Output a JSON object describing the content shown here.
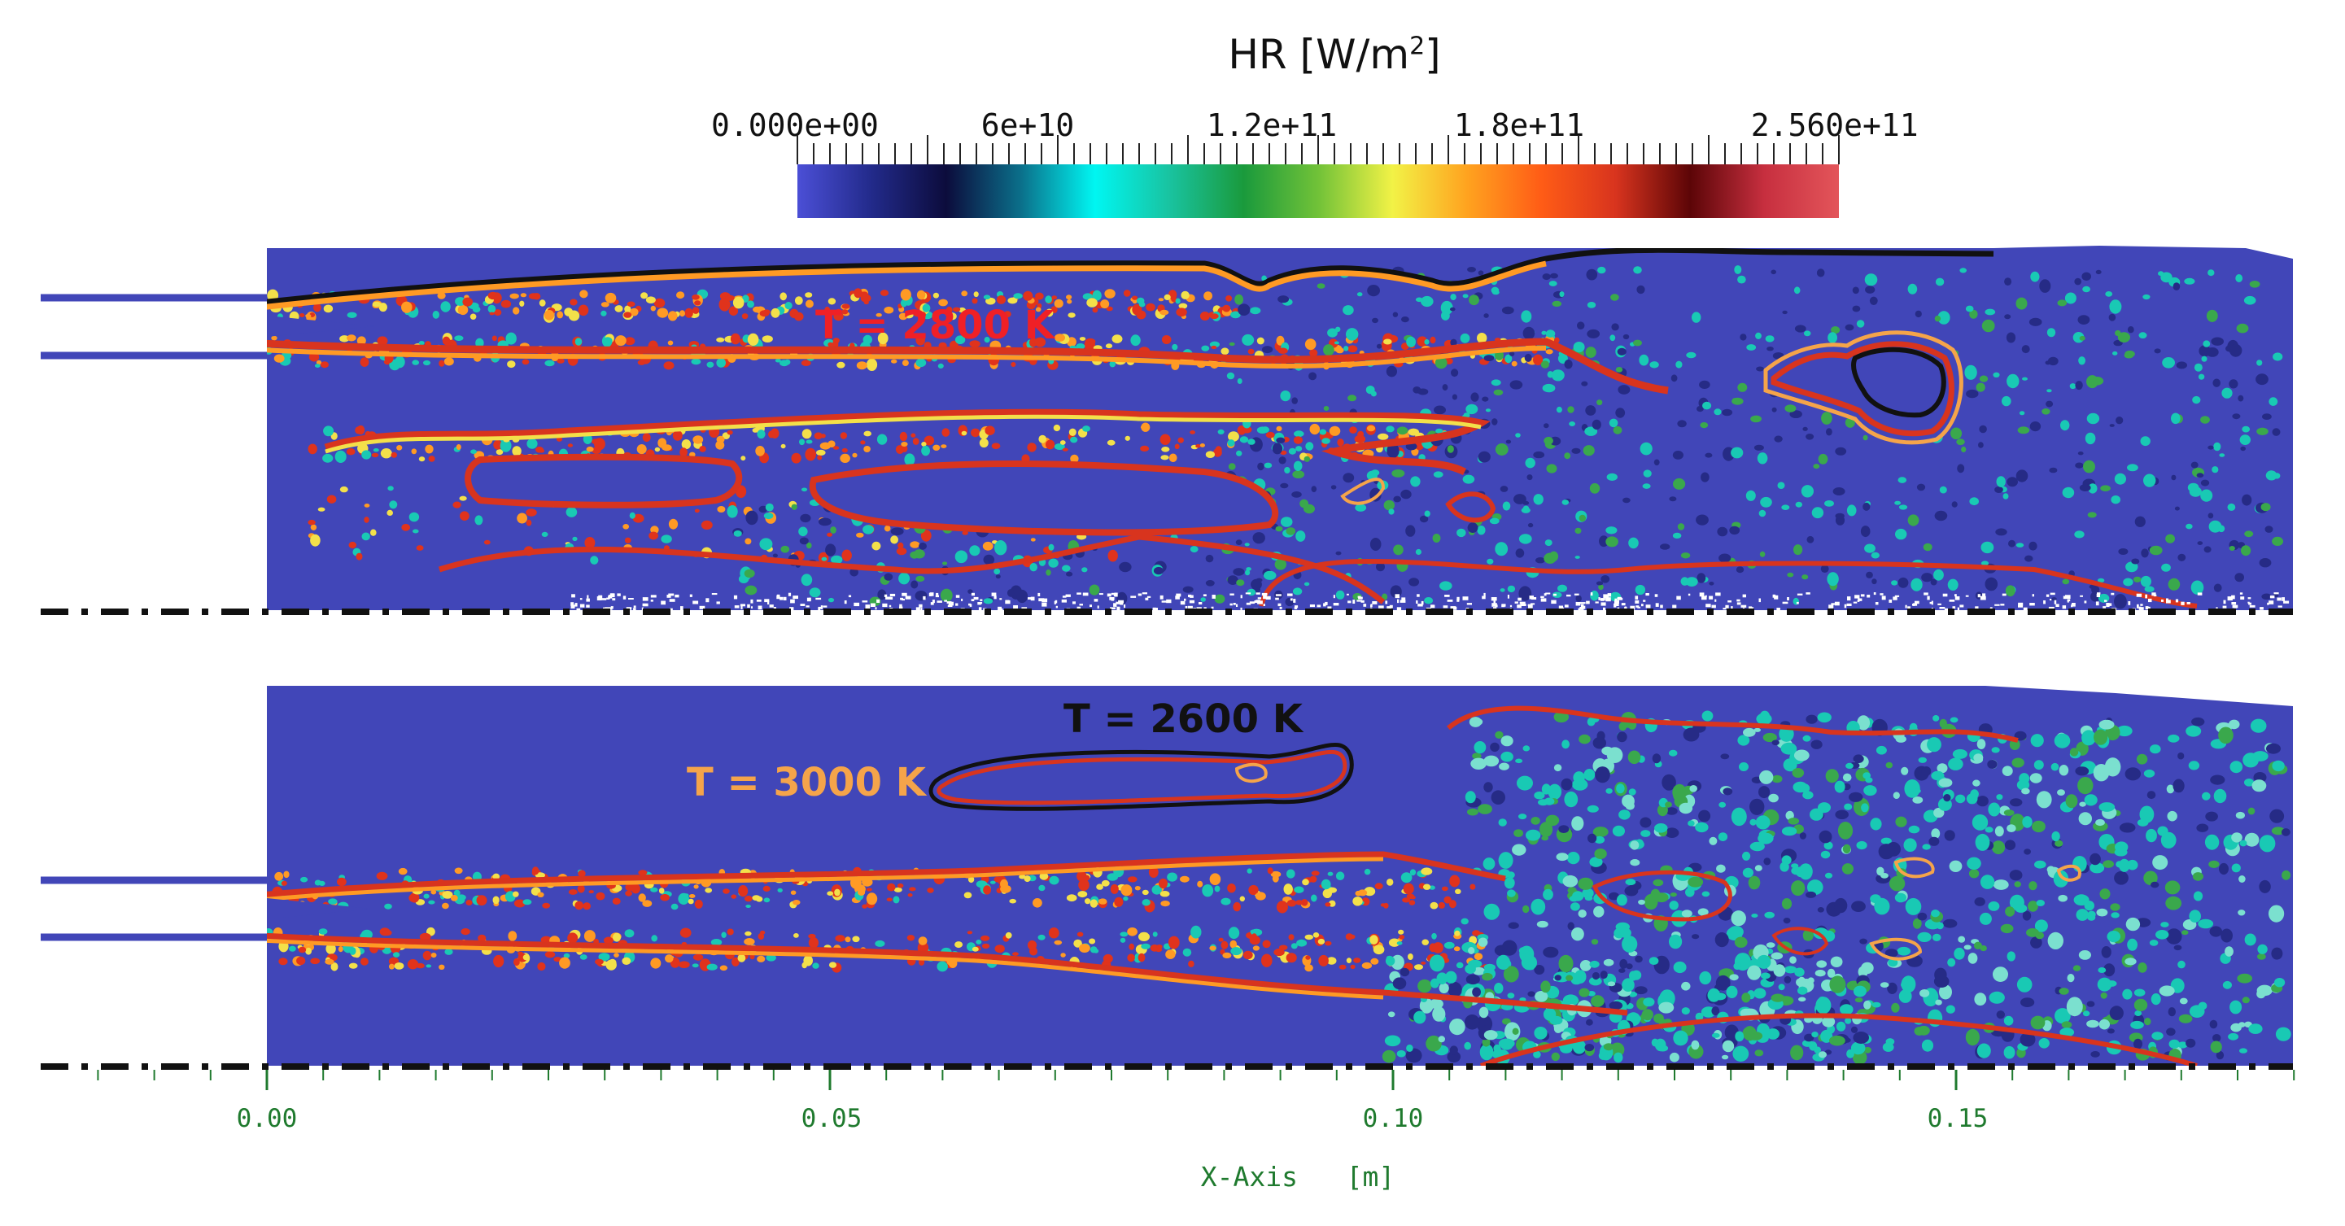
{
  "chart_data": {
    "type": "heatmap",
    "colorbar": {
      "label_text": "HR [W/m",
      "label_superscript": "2",
      "label_close": "]",
      "min": 0,
      "max": 256000000000.0,
      "tick_labels": [
        "0.000e+00",
        "6e+10",
        "1.2e+11",
        "1.8e+11",
        "2.560e+11"
      ],
      "tick_values": [
        0,
        60000000000.0,
        120000000000.0,
        180000000000.0,
        256000000000.0
      ],
      "colormap": [
        "#4b4fd6",
        "#222a8a",
        "#0c0c3c",
        "#0b6f8a",
        "#00f6f2",
        "#19c3a0",
        "#1a9a3c",
        "#71c238",
        "#f2f246",
        "#ffa31f",
        "#ff5c16",
        "#d8341e",
        "#5c0507",
        "#c72f3f",
        "#e3555a"
      ]
    },
    "panels": [
      {
        "name": "top",
        "isotherm_labels": [
          {
            "text": "T = 2800 K",
            "color": "#ef2026"
          }
        ]
      },
      {
        "name": "bottom",
        "isotherm_labels": [
          {
            "text": "T = 2600 K",
            "color": "#111111"
          },
          {
            "text": "T = 3000 K",
            "color": "#f5a44a"
          }
        ]
      }
    ],
    "x_axis": {
      "title": "X-Axis   [m]",
      "tick_labels": [
        "0.00",
        "0.05",
        "0.10",
        "0.15"
      ],
      "tick_values": [
        0,
        0.05,
        0.1,
        0.15
      ],
      "range": [
        -0.02,
        0.182
      ]
    },
    "colors": {
      "background_field": "#4146b8",
      "field_dark": "#262b86",
      "cyan_patch": "#19c9b4",
      "green_patch": "#3aa84c",
      "flame_red": "#e0331c",
      "flame_orange": "#ff9a24",
      "flame_yellow": "#f3e04a",
      "iso_2600": "#111111",
      "iso_2800": "#d8341e",
      "iso_3000": "#f5a44a",
      "axis_green": "#1f7a2e"
    }
  }
}
